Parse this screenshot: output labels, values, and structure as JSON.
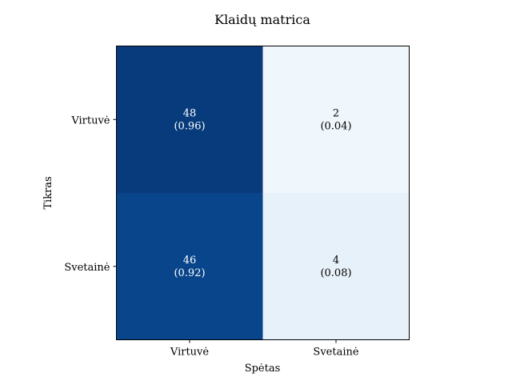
{
  "chart_data": {
    "type": "heatmap",
    "title": "Klaidų matrica",
    "xlabel": "Spėtas",
    "ylabel": "Tikras",
    "x_categories": [
      "Virtuvė",
      "Svetainė"
    ],
    "y_categories": [
      "Virtuvė",
      "Svetainė"
    ],
    "values": [
      [
        48,
        2
      ],
      [
        46,
        4
      ]
    ],
    "normalized": [
      [
        "(0.96)",
        "(0.04)"
      ],
      [
        "(0.92)",
        "(0.08)"
      ]
    ],
    "colormap": "Blues",
    "vmin": 0,
    "vmax": 1,
    "colors": {
      "low": "#f7fbff",
      "high": "#08306b",
      "text_dark": "#000000",
      "text_light": "#ffffff"
    }
  }
}
